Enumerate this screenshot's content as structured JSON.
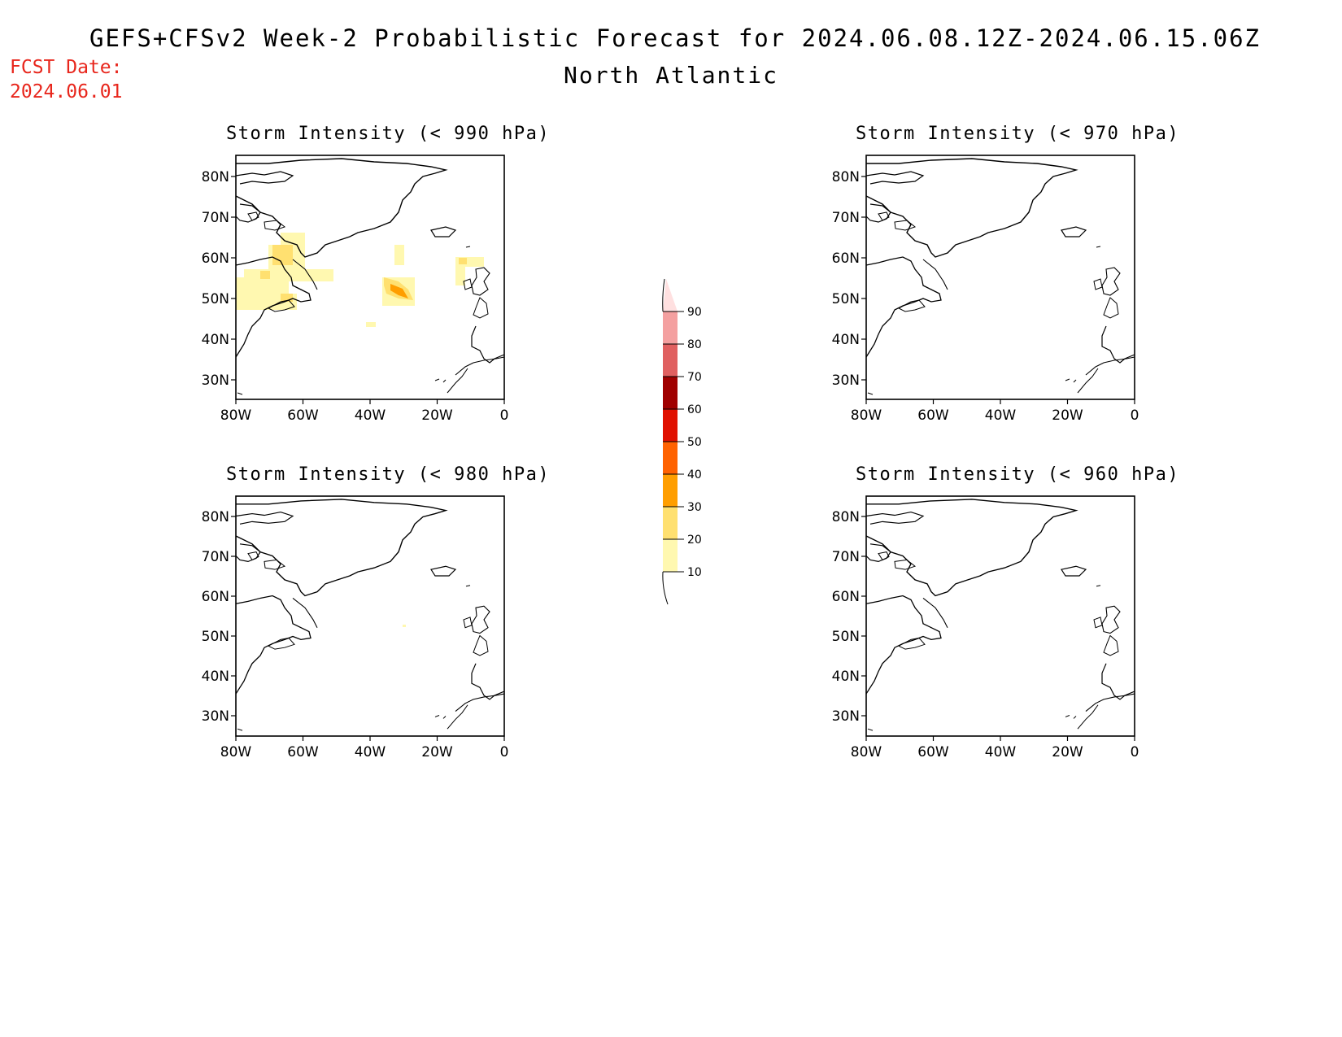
{
  "title": "GEFS+CFSv2 Week-2 Probabilistic Forecast for 2024.06.08.12Z-2024.06.15.06Z",
  "subtitle": "North Atlantic",
  "fcst_date_label": "FCST Date:",
  "fcst_date": "2024.06.01",
  "panels": [
    {
      "title": "Storm Intensity (< 990 hPa)"
    },
    {
      "title": "Storm Intensity (< 970 hPa)"
    },
    {
      "title": "Storm Intensity (< 980 hPa)"
    },
    {
      "title": "Storm Intensity (< 960 hPa)"
    }
  ],
  "axes": {
    "lat_labels": [
      "80N",
      "70N",
      "60N",
      "50N",
      "40N",
      "30N"
    ],
    "lon_labels": [
      "80W",
      "60W",
      "40W",
      "20W",
      "0"
    ]
  },
  "colorbar": {
    "levels": [
      "10",
      "20",
      "30",
      "40",
      "50",
      "60",
      "70",
      "80",
      "90"
    ],
    "colors": [
      "#fff8b0",
      "#ffe070",
      "#ff9e00",
      "#ff6200",
      "#e01000",
      "#a00000",
      "#e06060",
      "#f4a0a0",
      "#ffe0e0"
    ]
  },
  "coast_color": "#000000"
}
